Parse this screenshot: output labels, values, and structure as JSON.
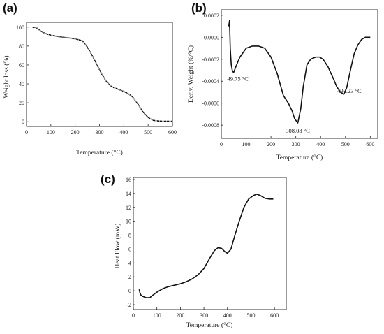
{
  "chart_data": [
    {
      "panel": "(a)",
      "type": "line",
      "xlabel": "Temperature (°C)",
      "ylabel": "Weight loss (%)",
      "xlim": [
        0,
        600
      ],
      "ylim": [
        -5,
        105
      ],
      "xticks": [
        0,
        100,
        200,
        300,
        400,
        500,
        600
      ],
      "yticks": [
        0,
        20,
        40,
        60,
        80,
        100
      ],
      "annotations": [],
      "series": [
        {
          "x": [
            25,
            30,
            40,
            50,
            60,
            80,
            100,
            130,
            160,
            190,
            210,
            230,
            250,
            270,
            290,
            310,
            330,
            350,
            370,
            400,
            420,
            440,
            460,
            480,
            500,
            520,
            540,
            560,
            580,
            600
          ],
          "y": [
            99.5,
            100,
            99.5,
            97.5,
            95.5,
            93,
            91.5,
            90,
            89,
            88,
            87,
            85.5,
            79,
            70,
            60,
            50,
            42,
            37,
            35,
            32,
            29.5,
            25,
            18,
            10,
            4.5,
            1.5,
            0.8,
            0.5,
            0.5,
            0.5
          ]
        }
      ]
    },
    {
      "panel": "(b)",
      "type": "line",
      "xlabel": "Temperatura (°C)",
      "ylabel": "Deriv. Weight (%/°C)",
      "xlim": [
        0,
        630
      ],
      "ylim": [
        -0.00092,
        0.00025
      ],
      "xticks": [
        0,
        100,
        200,
        300,
        400,
        500,
        600
      ],
      "yticks": [
        0.0002,
        0.0,
        -0.0002,
        -0.0004,
        -0.0006,
        -0.0008
      ],
      "ytick_labels": [
        "0.0002",
        "0.0000",
        "-0.0002",
        "-0.0004",
        "-0.0006",
        "-0.0008"
      ],
      "annotations": [
        {
          "text": "49.75 °C",
          "x": 49.75,
          "y": -0.00032
        },
        {
          "text": "308.08 °C",
          "x": 308.08,
          "y": -0.00078
        },
        {
          "text": "493.23 °C",
          "x": 493.23,
          "y": -0.00052
        }
      ],
      "series": [
        {
          "x": [
            30,
            33,
            36,
            40,
            45,
            49.75,
            60,
            75,
            100,
            125,
            150,
            175,
            200,
            225,
            250,
            270,
            285,
            295,
            308.08,
            320,
            330,
            345,
            360,
            380,
            395,
            410,
            430,
            450,
            465,
            480,
            493.23,
            505,
            520,
            535,
            550,
            565,
            580,
            600
          ],
          "y": [
            0.0001,
            0.00015,
            -0.0001,
            -0.00025,
            -0.00031,
            -0.00032,
            -0.00026,
            -0.00018,
            -0.0001,
            -8e-05,
            -8e-05,
            -0.0001,
            -0.00018,
            -0.00033,
            -0.00053,
            -0.0006,
            -0.00067,
            -0.00074,
            -0.00078,
            -0.00065,
            -0.00045,
            -0.00025,
            -0.0002,
            -0.00018,
            -0.00018,
            -0.0002,
            -0.00027,
            -0.00037,
            -0.00045,
            -0.0005,
            -0.00052,
            -0.00046,
            -0.0003,
            -0.00015,
            -7e-05,
            -2e-05,
            0.0,
            0.0
          ]
        }
      ]
    },
    {
      "panel": "(c)",
      "type": "line",
      "xlabel": "Temperature (°C)",
      "ylabel": "Heat Flow (mW)",
      "xlim": [
        0,
        650
      ],
      "ylim": [
        -2.7,
        16.3
      ],
      "xticks": [
        0,
        100,
        200,
        300,
        400,
        500,
        600
      ],
      "yticks": [
        -2,
        0,
        2,
        4,
        6,
        8,
        10,
        12,
        14,
        16
      ],
      "annotations": [],
      "series": [
        {
          "x": [
            25,
            28,
            32,
            40,
            55,
            70,
            80,
            100,
            125,
            150,
            175,
            200,
            225,
            250,
            275,
            300,
            325,
            345,
            360,
            375,
            390,
            400,
            415,
            430,
            450,
            470,
            490,
            510,
            525,
            540,
            560,
            580,
            595
          ],
          "y": [
            0.2,
            -0.3,
            -0.6,
            -0.8,
            -1.0,
            -1.0,
            -0.7,
            -0.2,
            0.3,
            0.6,
            0.8,
            1.0,
            1.3,
            1.7,
            2.3,
            3.2,
            4.7,
            5.8,
            6.2,
            6.1,
            5.6,
            5.4,
            6.0,
            7.8,
            10.0,
            12.0,
            13.2,
            13.7,
            13.9,
            13.7,
            13.3,
            13.2,
            13.2
          ]
        }
      ]
    }
  ]
}
